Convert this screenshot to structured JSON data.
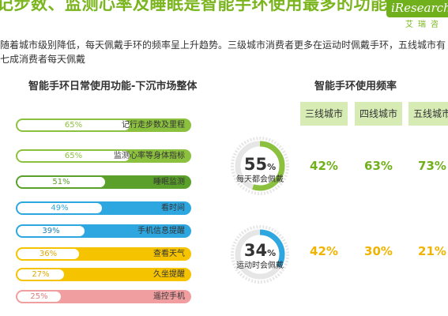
{
  "header": {
    "title": "记步数、监测心率及睡眠是智能手环使用最多的功能",
    "logo": "iResearch",
    "logo_sub": "艾瑞咨"
  },
  "intro": "随着城市级别降低，每天佩戴手环的频率呈上升趋势。三级城市消费者更多在运动时佩戴手环，五线城市有七成消费者每天佩戴",
  "functions": {
    "title": "智能手环日常使用功能-下沉市场整体",
    "items": [
      {
        "pct": "65%",
        "label": "记行走步数及里程",
        "value": 0.65,
        "color": "#8cc13f",
        "text_color": "#8cc13f"
      },
      {
        "pct": "65%",
        "label": "监测心率等身体指标",
        "value": 0.65,
        "color": "#8cc13f",
        "text_color": "#8cc13f"
      },
      {
        "pct": "51%",
        "label": "睡眠监测",
        "value": 0.51,
        "color": "#5aa02a",
        "text_color": "#5aa02a"
      },
      {
        "pct": "49%",
        "label": "看时间",
        "value": 0.49,
        "color": "#2ea7e0",
        "text_color": "#2ea7e0"
      },
      {
        "pct": "39%",
        "label": "手机信息提醒",
        "value": 0.39,
        "color": "#2ea7e0",
        "text_color": "#1a7fb5"
      },
      {
        "pct": "36%",
        "label": "查看天气",
        "value": 0.36,
        "color": "#f5c300",
        "text_color": "#e0a800"
      },
      {
        "pct": "27%",
        "label": "久坐提醒",
        "value": 0.27,
        "color": "#f5c300",
        "text_color": "#e0a800"
      },
      {
        "pct": "25%",
        "label": "遥控手机",
        "value": 0.25,
        "color": "#f19ea0",
        "text_color": "#e07a7c"
      }
    ]
  },
  "frequency": {
    "title": "智能手环使用频率",
    "cities": [
      "三线城市",
      "四线城市",
      "五线城市"
    ],
    "rows": [
      {
        "pct_num": "55",
        "pct_unit": "%",
        "label": "每天都会佩戴",
        "value": 0.55,
        "color": "#8cc13f",
        "values": [
          "42%",
          "63%",
          "73%"
        ]
      },
      {
        "pct_num": "34",
        "pct_unit": "%",
        "label": "运动时会佩戴",
        "value": 0.34,
        "color": "#2ea7e0",
        "values": [
          "42%",
          "30%",
          "21%"
        ]
      }
    ]
  },
  "colors": {
    "accent_green": "#7ab51d",
    "value_green": "#6fb01c",
    "value_yellow": "#f0b400"
  }
}
